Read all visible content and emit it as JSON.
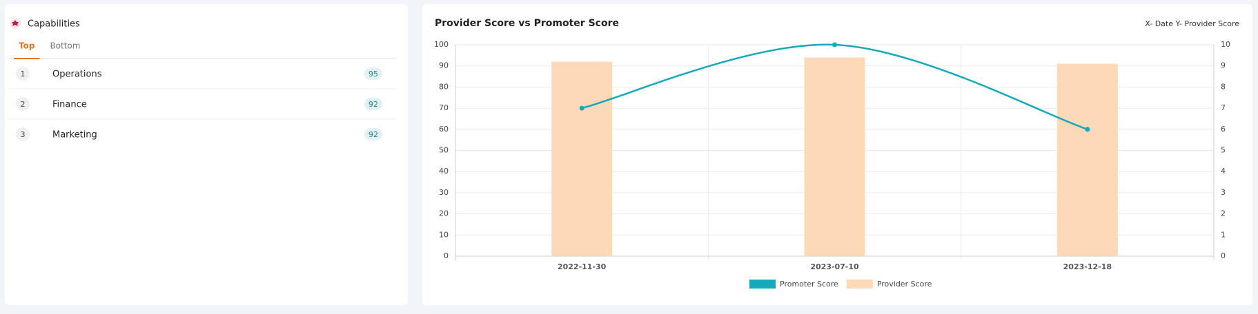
{
  "capabilities": {
    "title": "Capabilities",
    "tabs": [
      "Top",
      "Bottom"
    ],
    "active_tab": 0,
    "rows": [
      {
        "rank": 1,
        "name": "Operations",
        "score": 95
      },
      {
        "rank": 2,
        "name": "Finance",
        "score": 92
      },
      {
        "rank": 3,
        "name": "Marketing",
        "score": 92
      }
    ]
  },
  "chart_data": {
    "type": "bar-line",
    "title": "Provider Score vs Promoter Score",
    "xlabel": "X- Date",
    "ylabel": "Y- Provider Score",
    "categories": [
      "2022-11-30",
      "2023-07-10",
      "2023-12-18"
    ],
    "series": [
      {
        "name": "Promoter Score",
        "type": "line",
        "color": "#14aabb",
        "values": [
          70,
          100,
          60
        ]
      },
      {
        "name": "Provider Score",
        "type": "bar",
        "color": "#fdd9b8",
        "axis": "y2",
        "values": [
          9.2,
          9.4,
          9.1
        ]
      }
    ],
    "ylim": [
      0,
      100
    ],
    "yticks": [
      0,
      10,
      20,
      30,
      40,
      50,
      60,
      70,
      80,
      90,
      100
    ],
    "y2lim": [
      0,
      10
    ],
    "y2ticks": [
      0,
      1,
      2,
      3,
      4,
      5,
      6,
      7,
      8,
      9,
      10
    ],
    "grid": true,
    "legend": "bottom"
  }
}
